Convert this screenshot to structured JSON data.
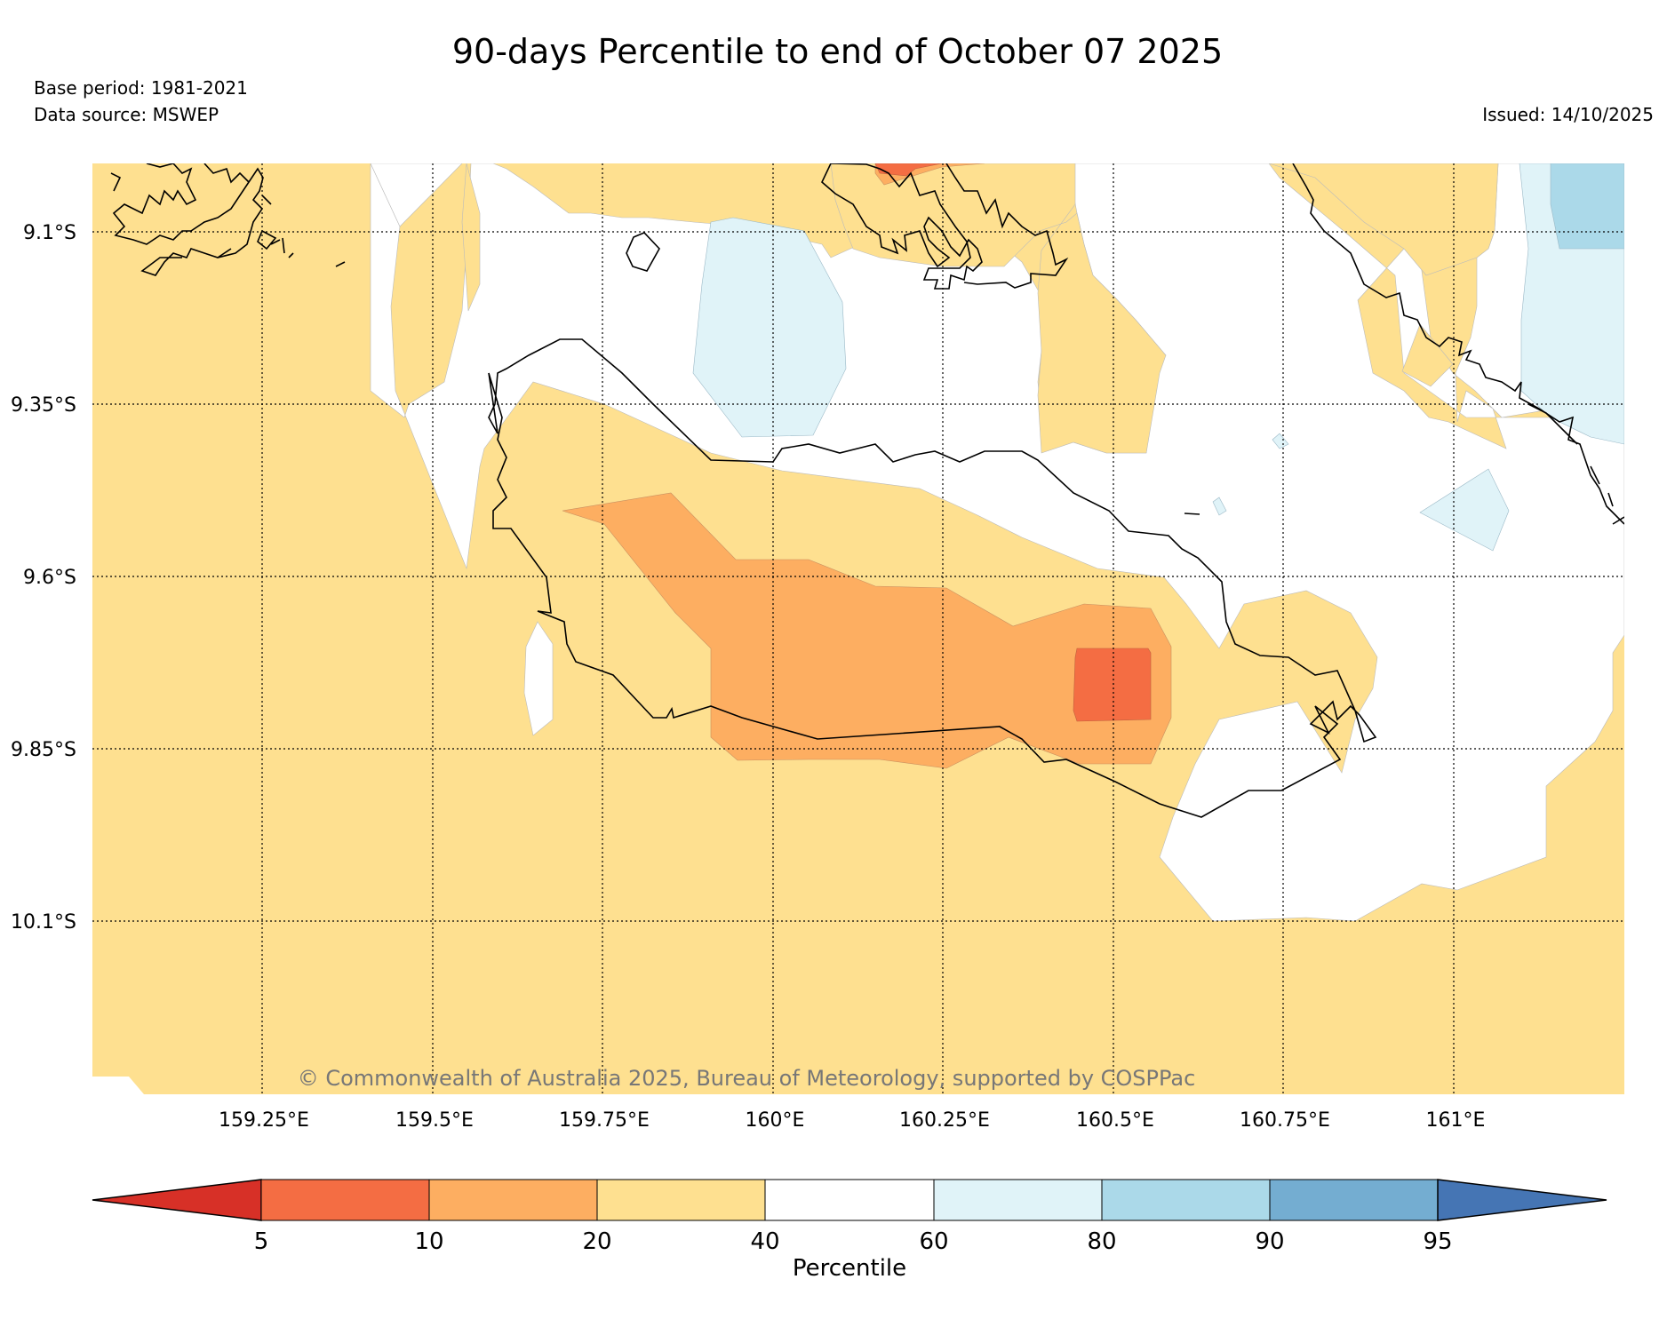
{
  "title": "90-days Percentile to end of October 07 2025",
  "base_period": "Base period: 1981-2021",
  "data_source": "Data source: MSWEP",
  "issued": "Issued: 14/10/2025",
  "copyright": "© Commonwealth of Australia 2025, Bureau of Meteorology, supported by COSPPac",
  "latitude_labels": [
    "9.1°S",
    "9.35°S",
    "9.6°S",
    "9.85°S",
    "10.1°S"
  ],
  "longitude_labels": [
    "159.25°E",
    "159.5°E",
    "159.75°E",
    "160°E",
    "160.25°E",
    "160.5°E",
    "160.75°E",
    "161°E"
  ],
  "colorbar": {
    "label": "Percentile",
    "ticks": [
      "5",
      "10",
      "20",
      "40",
      "60",
      "80",
      "90",
      "95"
    ],
    "colors": {
      "below_5": "#d73027",
      "5_10": "#f46d43",
      "10_20": "#fdae61",
      "20_40": "#fee090",
      "40_60": "#ffffff",
      "60_80": "#e0f3f8",
      "80_90": "#abd9e9",
      "90_95": "#74add1",
      "above_95": "#4575b4"
    }
  }
}
